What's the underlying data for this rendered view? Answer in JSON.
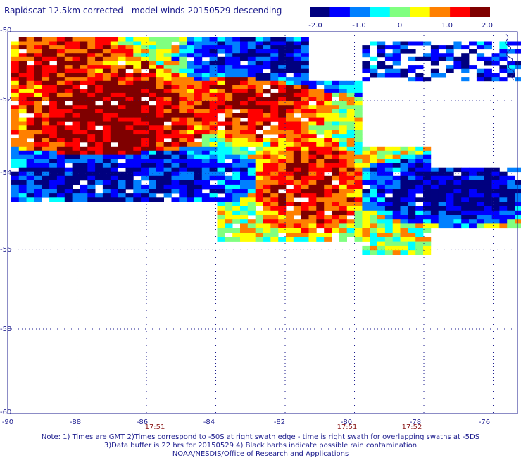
{
  "title": "Rapidscat 12.5km corrected - model winds 20150529 descending",
  "colorbar": {
    "ticks": [
      "-2.0",
      "-1.0",
      "0",
      "1.0",
      "2.0"
    ],
    "min": -2.0,
    "max": 2.0,
    "colors": [
      "#00007f",
      "#0000ff",
      "#0080ff",
      "#00ffff",
      "#80ff80",
      "#ffff00",
      "#ff8000",
      "#ff0000",
      "#7f0000"
    ]
  },
  "axes": {
    "lat_labels": [
      "-50",
      "-52",
      "-54",
      "-56",
      "-58",
      "-60"
    ],
    "lon_labels": [
      "-90",
      "-88",
      "-86",
      "-84",
      "-82",
      "-80",
      "-78",
      "-76"
    ],
    "lat_range": [
      -60,
      -50
    ],
    "lon_range": [
      -90,
      -75.3
    ],
    "grid": "dotted"
  },
  "swath_times": [
    {
      "label": "17:51",
      "lon": -86
    },
    {
      "label": "17:51",
      "lon": -80
    },
    {
      "label": "17:52",
      "lon": -78
    }
  ],
  "notes": [
    "Note: 1) Times are GMT 2)Times correspond to -50S at right swath edge - time is right swath for overlapping swaths at -5DS",
    "3)Data buffer is 22 hrs for 20150529 4) Black barbs indicate possible rain contamination",
    "NOAA/NESDIS/Office of Research and Applications"
  ],
  "chart_data": {
    "type": "heatmap",
    "title": "Rapidscat 12.5km corrected - model winds 20150529 descending",
    "value_range": [
      -2.0,
      2.0
    ],
    "x_axis": "longitude",
    "y_axis": "latitude",
    "xlim": [
      -90,
      -75.3
    ],
    "ylim": [
      -60,
      -50
    ],
    "regions": [
      {
        "name": "strong positive core",
        "lon": [
          -89,
          -85.5
        ],
        "lat": [
          -53.4,
          -51.4
        ],
        "value": 2.0
      },
      {
        "name": "positive west edge",
        "lon": [
          -90,
          -87.5
        ],
        "lat": [
          -51.5,
          -50.2
        ],
        "value": 1.5
      },
      {
        "name": "positive center",
        "lon": [
          -84,
          -81.8
        ],
        "lat": [
          -52.5,
          -51.5
        ],
        "value": 1.7
      },
      {
        "name": "positive south-center",
        "lon": [
          -82.2,
          -80.8
        ],
        "lat": [
          -55,
          -53.5
        ],
        "value": 1.6
      },
      {
        "name": "negative band south",
        "lon": [
          -90,
          -84
        ],
        "lat": [
          -54.5,
          -53.6
        ],
        "value": -1.6
      },
      {
        "name": "negative band north",
        "lon": [
          -84,
          -80
        ],
        "lat": [
          -51.2,
          -50.2
        ],
        "value": -1.5
      },
      {
        "name": "negative east arm",
        "lon": [
          -79,
          -75.3
        ],
        "lat": [
          -54.8,
          -53.9
        ],
        "value": -1.8
      },
      {
        "name": "negative northeast",
        "lon": [
          -80,
          -75.3
        ],
        "lat": [
          -51.5,
          -50.2
        ],
        "value": -1.4
      }
    ]
  }
}
